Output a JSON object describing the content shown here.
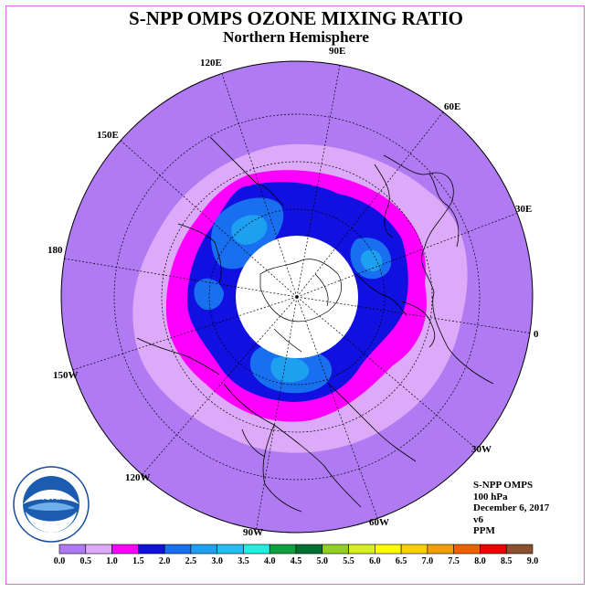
{
  "title": "S-NPP OMPS OZONE MIXING RATIO",
  "subtitle": "Northern Hemisphere",
  "longitude_labels": [
    "90E",
    "60E",
    "30E",
    "0",
    "30W",
    "60W",
    "90W",
    "120W",
    "150W",
    "180",
    "150E",
    "120E"
  ],
  "info": {
    "instrument": "S-NPP OMPS",
    "pressure": "100 hPa",
    "date": "December 6, 2017",
    "version": "v6",
    "units": "PPM"
  },
  "logo": {
    "text": "NOAA",
    "ring_text": "NATIONAL OCEANIC AND ATMOSPHERIC ADMINISTRATION - U.S. DEPARTMENT OF COMMERCE"
  },
  "colorbar": {
    "ticks": [
      "0.0",
      "0.5",
      "1.0",
      "1.5",
      "2.0",
      "2.5",
      "3.0",
      "3.5",
      "4.0",
      "4.5",
      "5.0",
      "5.5",
      "6.0",
      "6.5",
      "7.0",
      "7.5",
      "8.0",
      "8.5",
      "9.0"
    ],
    "colors": [
      "#b07af2",
      "#dcaaf8",
      "#ff00ff",
      "#1010e0",
      "#1870f0",
      "#1ea0f0",
      "#20c0f0",
      "#20f0e0",
      "#10a040",
      "#007030",
      "#90d020",
      "#d8f020",
      "#ffff00",
      "#f8d000",
      "#f0a000",
      "#f06000",
      "#f00000",
      "#8a5030"
    ]
  },
  "map": {
    "background_color": "#b07af2",
    "contour_colors": {
      "lavender": "#dcaaf8",
      "magenta": "#ff00ff",
      "blue": "#1010e0",
      "mid_blue": "#1870f0",
      "light_blue": "#1ea0f0"
    }
  }
}
